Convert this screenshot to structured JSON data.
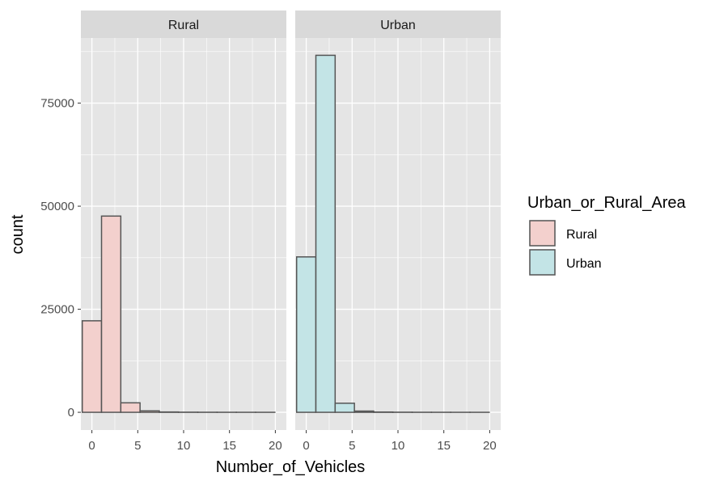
{
  "chart_data": {
    "type": "bar",
    "subtype": "faceted-histogram",
    "xlabel": "Number_of_Vehicles",
    "ylabel": "count",
    "xlim": [
      -1.2,
      21.2
    ],
    "ylim": [
      -4300,
      90800
    ],
    "x_ticks": [
      0,
      5,
      10,
      15,
      20
    ],
    "x_tick_labels": [
      "0",
      "5",
      "10",
      "15",
      "20"
    ],
    "y_ticks": [
      0,
      25000,
      50000,
      75000
    ],
    "y_tick_labels": [
      "0",
      "25000",
      "50000",
      "75000"
    ],
    "bin_width": 2.1,
    "bin_starts": [
      -1.05,
      1.05,
      3.15,
      5.25,
      7.35,
      9.45,
      11.55,
      13.65,
      15.75,
      17.85
    ],
    "legend": {
      "title": "Urban_or_Rural_Area",
      "placement": "right",
      "items": [
        {
          "label": "Rural",
          "fill": "#f3d0cd",
          "stroke": "#555555"
        },
        {
          "label": "Urban",
          "fill": "#c3e4e6",
          "stroke": "#555555"
        }
      ]
    },
    "panels": [
      {
        "name": "Rural",
        "strip_label": "Rural",
        "fill": "#f3d0cd",
        "counts": [
          22200,
          47600,
          2300,
          350,
          80,
          30,
          15,
          8,
          5,
          3
        ]
      },
      {
        "name": "Urban",
        "strip_label": "Urban",
        "fill": "#c3e4e6",
        "counts": [
          37700,
          86600,
          2200,
          300,
          70,
          25,
          12,
          6,
          4,
          2
        ]
      }
    ],
    "colors": {
      "panel_bg": "#e5e5e5",
      "strip_bg": "#d9d9d9",
      "grid": "#ffffff",
      "bar_stroke": "#555555",
      "tick": "#333333"
    }
  }
}
